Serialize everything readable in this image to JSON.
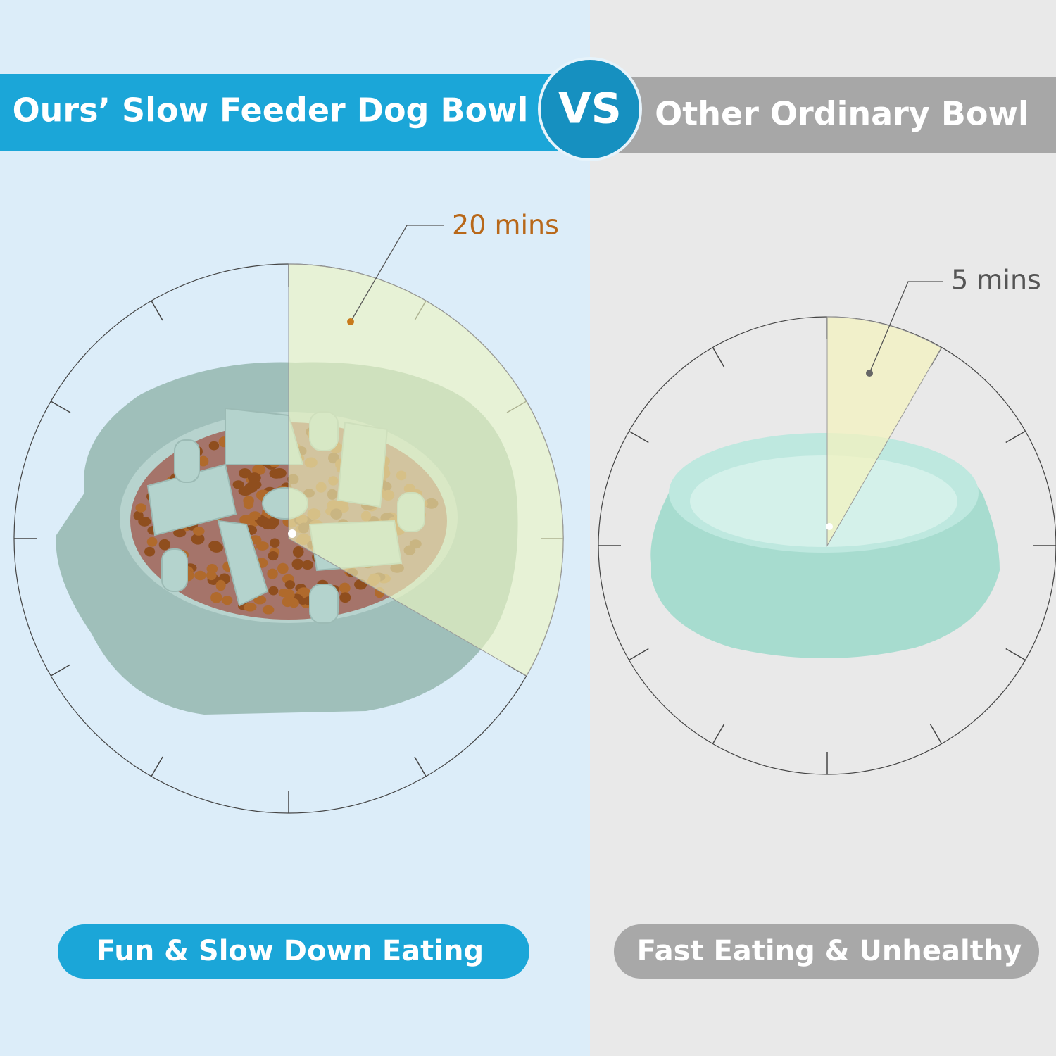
{
  "left": {
    "header": "Ours’ Slow Feeder Dog Bowl",
    "time_label": "20 mins",
    "caption": "Fun & Slow Down Eating"
  },
  "versus": "VS",
  "right": {
    "header": "Other Ordinary Bowl",
    "time_label": "5 mins",
    "caption": "Fast Eating & Unhealthy"
  }
}
